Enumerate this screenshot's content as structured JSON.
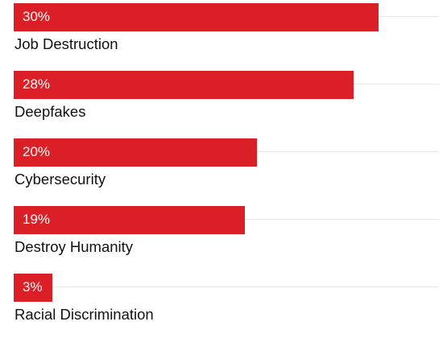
{
  "chart_data": {
    "type": "bar",
    "orientation": "horizontal",
    "categories": [
      "Job Destruction",
      "Deepfakes",
      "Cybersecurity",
      "Destroy Humanity",
      "Racial Discrimination"
    ],
    "values": [
      30,
      28,
      20,
      19,
      3
    ],
    "value_labels": [
      "30%",
      "28%",
      "20%",
      "19%",
      "3%"
    ],
    "unit": "%",
    "xlim": [
      0,
      35
    ],
    "grid": true,
    "legend": "none",
    "colors": {
      "bar": "#db1f26",
      "value_text": "#ffffff",
      "category_text": "#111111",
      "grid": "#e9e9e9"
    }
  }
}
